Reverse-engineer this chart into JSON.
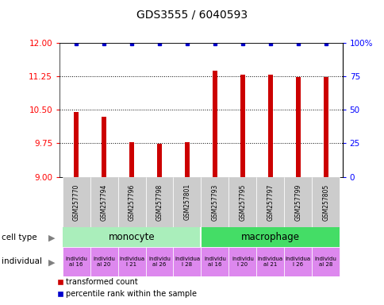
{
  "title": "GDS3555 / 6040593",
  "samples": [
    "GSM257770",
    "GSM257794",
    "GSM257796",
    "GSM257798",
    "GSM257801",
    "GSM257793",
    "GSM257795",
    "GSM257797",
    "GSM257799",
    "GSM257805"
  ],
  "red_values": [
    10.45,
    10.35,
    9.78,
    9.74,
    9.78,
    11.37,
    11.28,
    11.28,
    11.23,
    11.23
  ],
  "blue_values": [
    99,
    99,
    99,
    99,
    99,
    99,
    99,
    99,
    99,
    99
  ],
  "ylim_left": [
    9.0,
    12.0
  ],
  "ylim_right": [
    0,
    100
  ],
  "yticks_left": [
    9.0,
    9.75,
    10.5,
    11.25,
    12.0
  ],
  "yticks_right": [
    0,
    25,
    50,
    75,
    100
  ],
  "bar_color": "#cc0000",
  "dot_color": "#0000cc",
  "monocyte_color": "#aaeebb",
  "macrophage_color": "#44dd66",
  "individual_color": "#dd88ee",
  "sample_bg_color": "#cccccc",
  "legend_red_label": "transformed count",
  "legend_blue_label": "percentile rank within the sample",
  "indiv_texts": [
    "individu\nal 16",
    "individu\nal 20",
    "individua\nl 21",
    "individu\nal 26",
    "individua\nl 28",
    "individu\nal 16",
    "individu\nl 20",
    "individua\nal 21",
    "individua\nl 26",
    "individu\nal 28"
  ]
}
